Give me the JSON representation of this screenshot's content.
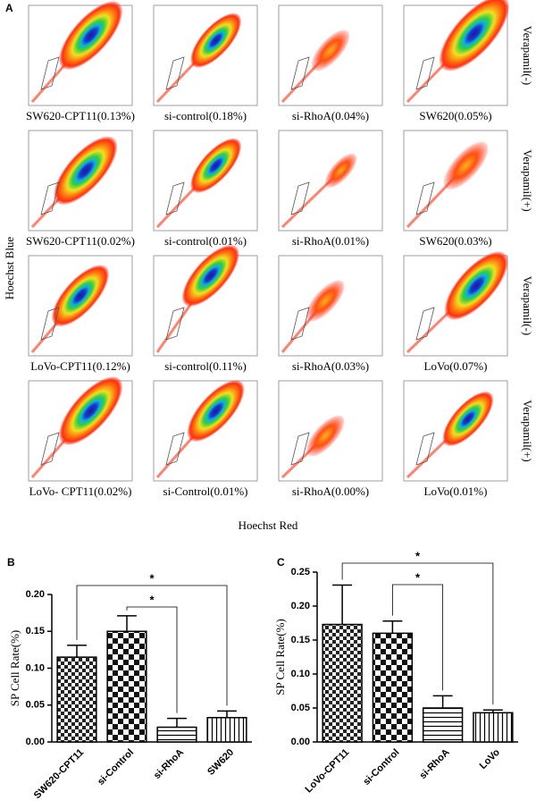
{
  "panel_a": {
    "letter": "A",
    "y_label": "Hoechst Blue",
    "x_label": "Hoechst Red",
    "labels": [
      "SW620-CPT11(0.13%)",
      "si-control(0.18%)",
      "si-RhoA(0.04%)",
      "SW620(0.05%)",
      "SW620-CPT11(0.02%)",
      "si-control(0.01%)",
      "si-RhoA(0.01%)",
      "SW620(0.03%)",
      "LoVo-CPT11(0.12%)",
      "si-control(0.11%)",
      "si-RhoA(0.03%)",
      "LoVo(0.07%)",
      "LoVo- CPT11(0.02%)",
      "si-Control(0.01%)",
      "si-RhoA(0.00%)",
      "LoVo(0.01%)"
    ],
    "row_labels": [
      "Verapamil(-)",
      "Verapamil(+)",
      "Verapamil(-)",
      "Verapamil(+)"
    ]
  },
  "chart_data": [
    {
      "type": "bar",
      "panel": "B",
      "y_label": "SP Cell Rate(%)",
      "categories": [
        "SW620-CPT11",
        "si-Control",
        "si-RhoA",
        "SW620"
      ],
      "values": [
        0.115,
        0.15,
        0.02,
        0.033
      ],
      "errors": [
        0.016,
        0.021,
        0.012,
        0.009
      ],
      "ylim": [
        0,
        0.2
      ],
      "yticks": [
        {
          "value": 0,
          "label": "0.00"
        },
        {
          "value": 0.05,
          "label": "0.05"
        },
        {
          "value": 0.1,
          "label": "0.10"
        },
        {
          "value": 0.15,
          "label": "0.15"
        },
        {
          "value": 0.2,
          "label": "0.20"
        }
      ],
      "annotations": [
        {
          "text": "*",
          "from": 0,
          "to": 3
        },
        {
          "text": "*",
          "from": 1,
          "to": 2
        }
      ]
    },
    {
      "type": "bar",
      "panel": "C",
      "y_label": "SP Cell Rate(%)",
      "categories": [
        "LoVo-CPT11",
        "si-Control",
        "si-RhoA",
        "LoVo"
      ],
      "values": [
        0.173,
        0.16,
        0.05,
        0.043
      ],
      "errors": [
        0.058,
        0.018,
        0.018,
        0.004
      ],
      "ylim": [
        0,
        0.25
      ],
      "yticks": [
        {
          "value": 0,
          "label": "0.00"
        },
        {
          "value": 0.05,
          "label": "0.05"
        },
        {
          "value": 0.1,
          "label": "0.10"
        },
        {
          "value": 0.15,
          "label": "0.15"
        },
        {
          "value": 0.2,
          "label": "0.20"
        },
        {
          "value": 0.25,
          "label": "0.25"
        }
      ],
      "annotations": [
        {
          "text": "*",
          "from": 0,
          "to": 3
        },
        {
          "text": "*",
          "from": 1,
          "to": 2
        }
      ]
    }
  ]
}
